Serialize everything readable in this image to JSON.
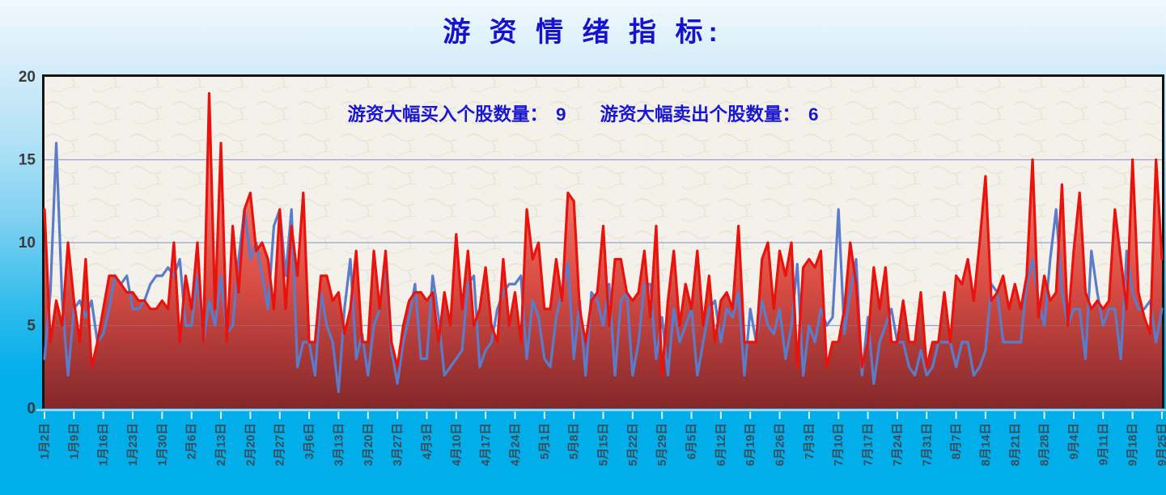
{
  "title": "游 资 情 绪 指 标:",
  "annotation": {
    "buy_label": "游资大幅买入个股数量：",
    "buy_value": "9",
    "sell_label": "游资大幅卖出个股数量：",
    "sell_value": "6"
  },
  "colors": {
    "title_text": "#1513ce",
    "annotation_text": "#1a17d0",
    "buy_line": "#e8130c",
    "sell_line": "#5b7cc8",
    "gridline": "#93a4d4",
    "plot_background": "#f3f1ea",
    "plot_border": "#141414",
    "axis_line": "#aedbf2",
    "axis_tick": "#ddf1fb",
    "x_label_text": "#3a4c5a",
    "y_label_text": "#3b3b3b",
    "area_gradient": [
      "#f7b0a4",
      "#ee6e61",
      "#d9453c",
      "#7d1d21"
    ],
    "page_background_top": "#f0f9fd",
    "page_background_bottom": "#00aeea"
  },
  "chart_data": {
    "type": "area",
    "title": "游 资 情 绪 指 标:",
    "xlabel": "",
    "ylabel": "",
    "ylim": [
      0,
      20
    ],
    "yticks": [
      0,
      5,
      10,
      15,
      20
    ],
    "grid": "horizontal",
    "legend_position": "none",
    "x_label_step": 5,
    "x_labels": [
      "1月2日",
      "1月9日",
      "1月16日",
      "1月23日",
      "1月30日",
      "2月6日",
      "2月13日",
      "2月20日",
      "2月27日",
      "3月6日",
      "3月13日",
      "3月20日",
      "3月27日",
      "4月3日",
      "4月10日",
      "4月17日",
      "4月24日",
      "5月1日",
      "5月8日",
      "5月15日",
      "5月22日",
      "5月29日",
      "6月5日",
      "6月12日",
      "6月19日",
      "6月26日",
      "7月3日",
      "7月10日",
      "7月17日",
      "7月24日",
      "7月31日",
      "8月7日",
      "8月14日",
      "8月21日",
      "8月28日",
      "9月4日",
      "9月11日",
      "9月18日",
      "9月25日"
    ],
    "series": [
      {
        "name": "游资大幅买入个股数量",
        "role": "buy",
        "style": "area",
        "color": "#e8130c",
        "current_value": 9,
        "values": [
          12,
          4,
          6.5,
          5,
          10,
          6.5,
          4,
          9,
          2.5,
          4,
          6,
          8,
          8,
          7.5,
          7,
          7,
          6.5,
          6.5,
          6,
          6,
          6.5,
          6,
          10,
          4,
          8,
          6,
          10,
          4,
          19,
          6,
          16,
          4,
          11,
          7,
          12,
          13,
          9.5,
          10,
          9,
          6,
          12,
          6,
          11,
          8,
          13,
          4,
          4,
          8,
          8,
          6.5,
          7,
          4.5,
          6,
          9.5,
          4,
          4,
          9.5,
          6,
          9.5,
          4,
          2.5,
          5,
          6.5,
          7,
          7,
          6.5,
          7,
          4,
          7,
          5,
          10.5,
          6,
          9.5,
          5,
          6,
          8.5,
          5,
          4,
          9,
          5,
          7,
          4,
          12,
          9,
          10,
          6,
          6,
          9,
          6.5,
          13,
          12.5,
          6,
          4,
          6.5,
          7,
          11,
          5,
          9,
          9,
          7,
          6.5,
          7,
          9.5,
          5.5,
          11,
          2,
          6.5,
          9.5,
          5,
          7.5,
          6,
          9.5,
          5,
          8,
          4,
          6.5,
          7,
          6,
          11,
          4,
          4,
          4,
          9,
          10,
          6,
          9.5,
          8,
          10,
          2.5,
          8.5,
          9,
          8.5,
          9.5,
          2.5,
          4,
          4,
          6,
          10,
          7.5,
          2.5,
          4,
          8.5,
          6,
          8.5,
          4,
          4,
          6.5,
          4,
          4,
          7,
          2.5,
          4,
          4,
          7,
          4,
          8,
          7.5,
          9,
          6.5,
          10,
          14,
          6.5,
          7,
          8,
          6,
          7.5,
          6,
          8,
          15,
          5.5,
          8,
          6.5,
          7,
          13.5,
          5,
          9.5,
          13,
          7,
          6,
          6.5,
          6,
          6.5,
          12,
          9,
          6,
          15,
          7,
          5.5,
          4.5,
          15,
          9
        ]
      },
      {
        "name": "游资大幅卖出个股数量",
        "role": "sell",
        "style": "line",
        "color": "#5b7cc8",
        "current_value": 6,
        "values": [
          3,
          7,
          16,
          6.5,
          2,
          6,
          6.5,
          5.5,
          6.5,
          4,
          4.5,
          6,
          8,
          7.5,
          8,
          6,
          6,
          6.5,
          7.5,
          8,
          8,
          8.5,
          8,
          9,
          5,
          5,
          8,
          4,
          6.5,
          5,
          8,
          4.5,
          5,
          9,
          12,
          9,
          10,
          8,
          6,
          11,
          12,
          8,
          12,
          2.5,
          4,
          4,
          2,
          7,
          5,
          4,
          1,
          6,
          9,
          3,
          4.5,
          2,
          5,
          6,
          9,
          3.5,
          1.5,
          4,
          5.5,
          7.5,
          3,
          3,
          8,
          5.5,
          2,
          2.5,
          3,
          3.5,
          7.5,
          8,
          2.5,
          3.5,
          4,
          6,
          7,
          7.5,
          7.5,
          8,
          3,
          6.5,
          5.5,
          3,
          2.5,
          5.5,
          7,
          8.8,
          3,
          6.5,
          2,
          7,
          6.5,
          5,
          7.5,
          2,
          6.5,
          7,
          2,
          4,
          7.5,
          7.5,
          3,
          5.5,
          2,
          6,
          4,
          5,
          6,
          2,
          4,
          6,
          6.5,
          4,
          6,
          5.5,
          7,
          2,
          6,
          4,
          6.5,
          5,
          4.5,
          6,
          3,
          5,
          8.7,
          2,
          5,
          4,
          6,
          5,
          5.5,
          12,
          4.5,
          7,
          9,
          2,
          5.5,
          1.5,
          4,
          5,
          6,
          4,
          4,
          2.5,
          2,
          3.5,
          2,
          2.5,
          4,
          4,
          4,
          2.5,
          4,
          4,
          2,
          2.5,
          3.5,
          7.5,
          7,
          4,
          4,
          4,
          4,
          7.5,
          9,
          6.5,
          5,
          9,
          12,
          7,
          5,
          6,
          6,
          3,
          9.5,
          7,
          5,
          6,
          6,
          3,
          9.5,
          7,
          6,
          6,
          6.5,
          4,
          6
        ]
      }
    ]
  }
}
